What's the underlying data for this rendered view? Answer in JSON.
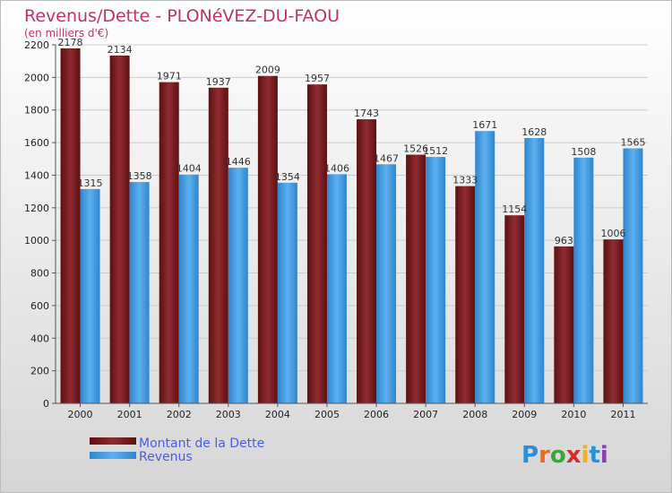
{
  "chart_data": {
    "type": "bar",
    "title": "Revenus/Dette - PLONéVEZ-DU-FAOU",
    "subtitle": "(en milliers d'€)",
    "categories": [
      "2000",
      "2001",
      "2002",
      "2003",
      "2004",
      "2005",
      "2006",
      "2007",
      "2008",
      "2009",
      "2010",
      "2011"
    ],
    "series": [
      {
        "name": "Montant de la Dette",
        "color": "#7a1f22",
        "values": [
          2178,
          2134,
          1971,
          1937,
          2009,
          1957,
          1743,
          1526,
          1333,
          1154,
          963,
          1006
        ]
      },
      {
        "name": "Revenus",
        "color": "#4aa3e6",
        "values": [
          1315,
          1358,
          1404,
          1446,
          1354,
          1406,
          1467,
          1512,
          1671,
          1628,
          1508,
          1565
        ]
      }
    ],
    "yticks": [
      0,
      200,
      400,
      600,
      800,
      1000,
      1200,
      1400,
      1600,
      1800,
      2000,
      2200
    ],
    "ylim": [
      0,
      2200
    ],
    "grid": true,
    "legend": "bottom-left"
  },
  "logo": {
    "text": "Proxiti"
  },
  "colors": {
    "title": "#c0306b",
    "legend_text": "#4a5de0",
    "background_top": "#ffffff",
    "background_bottom": "#d8d8d8"
  }
}
